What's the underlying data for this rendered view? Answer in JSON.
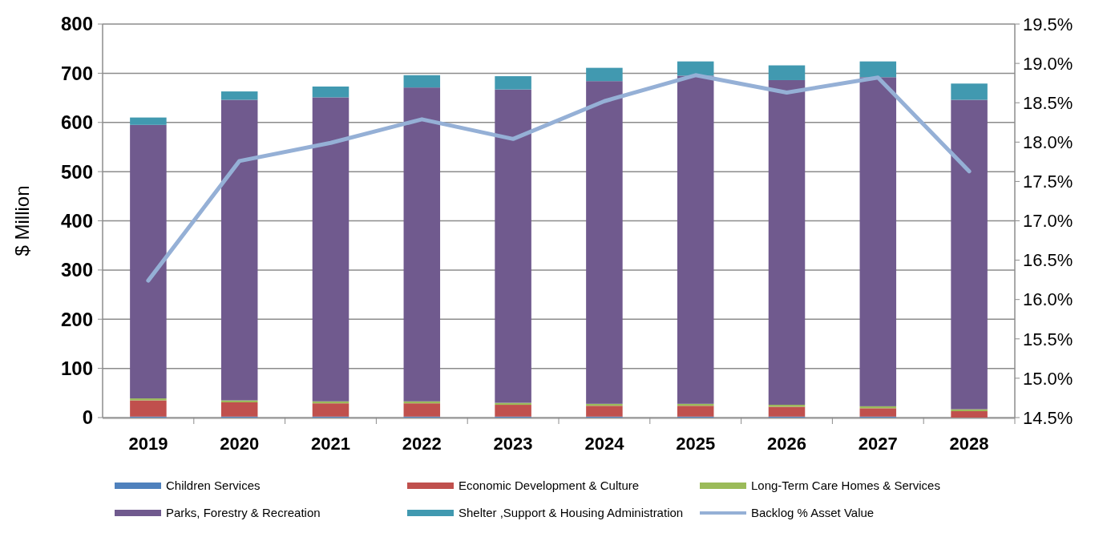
{
  "chart_data": {
    "type": "bar",
    "stacked": true,
    "ylabel": "$ Million",
    "categories": [
      "2019",
      "2020",
      "2021",
      "2022",
      "2023",
      "2024",
      "2025",
      "2026",
      "2027",
      "2028"
    ],
    "series": [
      {
        "name": "Children Services",
        "color": "#4f81bd",
        "values": [
          2,
          2,
          2,
          2,
          2,
          2,
          2,
          2,
          2,
          0
        ]
      },
      {
        "name": "Economic Development & Culture",
        "color": "#c0504d",
        "values": [
          33,
          29,
          27,
          27,
          24,
          22,
          22,
          20,
          17,
          13
        ]
      },
      {
        "name": "Long-Term Care Homes  & Services",
        "color": "#9bbb59",
        "values": [
          4,
          4,
          4,
          4,
          4,
          4,
          4,
          4,
          4,
          4
        ]
      },
      {
        "name": "Parks, Forestry & Recreation",
        "color": "#705a8e",
        "values": [
          556,
          611,
          618,
          638,
          637,
          656,
          667,
          660,
          669,
          629
        ]
      },
      {
        "name": "Shelter ,Support & Housing Administration",
        "color": "#4199b0",
        "values": [
          15,
          17,
          22,
          25,
          27,
          27,
          29,
          30,
          32,
          33
        ]
      },
      {
        "name": "Backlog % Asset Value",
        "type": "line",
        "axis": "y2",
        "color": "#95b0d6",
        "values": [
          16.24,
          17.76,
          17.99,
          18.29,
          18.04,
          18.52,
          18.85,
          18.63,
          18.82,
          17.63
        ]
      }
    ],
    "ylim": [
      0,
      800
    ],
    "yticks": [
      0,
      100,
      200,
      300,
      400,
      500,
      600,
      700,
      800
    ],
    "y2lim": [
      14.5,
      19.5
    ],
    "y2ticks": [
      {
        "value": 14.5,
        "label": "14.5%"
      },
      {
        "value": 15,
        "label": "15.0%"
      },
      {
        "value": 15.5,
        "label": "15.5%"
      },
      {
        "value": 16,
        "label": "16.0%"
      },
      {
        "value": 16.5,
        "label": "16.5%"
      },
      {
        "value": 17,
        "label": "17.0%"
      },
      {
        "value": 17.5,
        "label": "17.5%"
      },
      {
        "value": 18,
        "label": "18.0%"
      },
      {
        "value": 18.5,
        "label": "18.5%"
      },
      {
        "value": 19,
        "label": "19.0%"
      },
      {
        "value": 19.5,
        "label": "19.5%"
      }
    ],
    "grid": "y",
    "legend": "bottom"
  }
}
